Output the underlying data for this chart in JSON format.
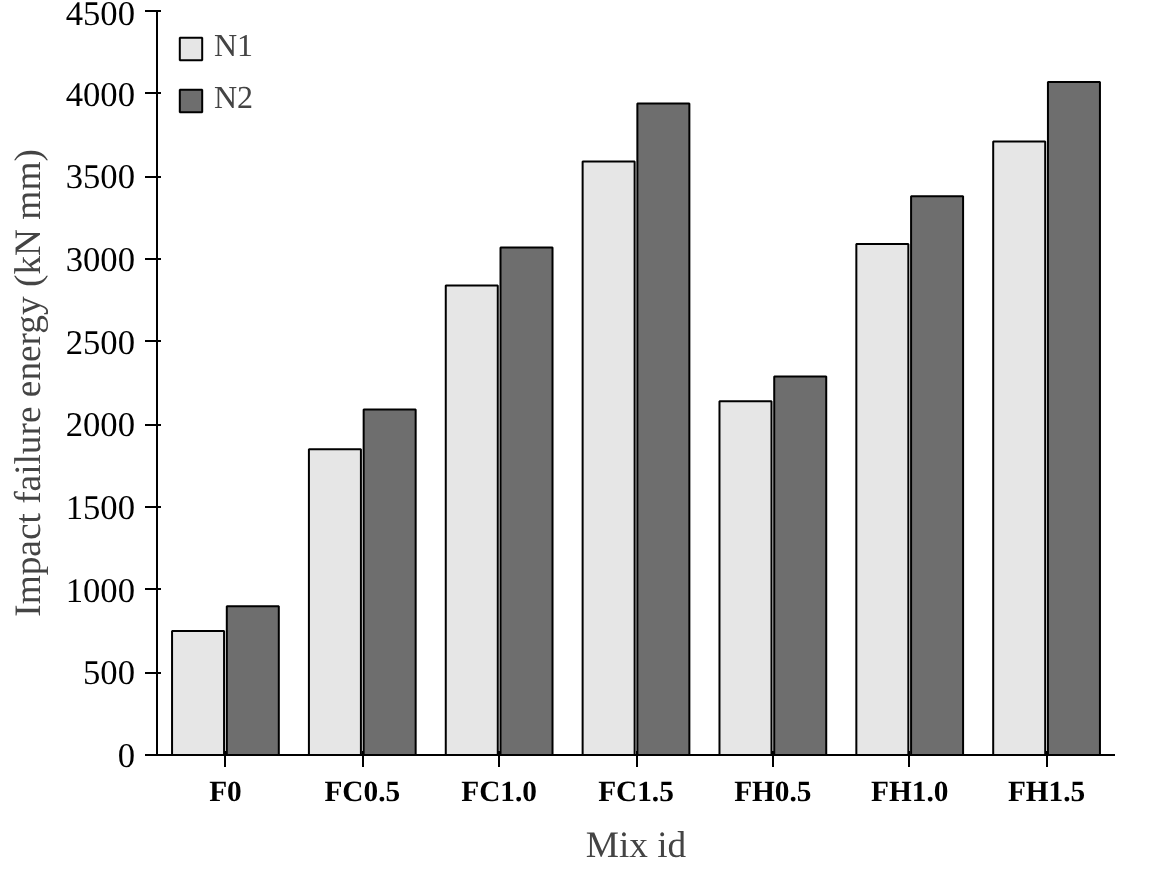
{
  "chart_data": {
    "type": "bar",
    "xlabel": "Mix id",
    "ylabel": "Impact failure energy (kN mm)",
    "categories": [
      "F0",
      "FC0.5",
      "FC1.0",
      "FC1.5",
      "FH0.5",
      "FH1.0",
      "FH1.5"
    ],
    "series": [
      {
        "name": "N1",
        "color": "#e6e6e6",
        "values": [
          750,
          1850,
          2840,
          3590,
          2140,
          3090,
          3710
        ]
      },
      {
        "name": "N2",
        "color": "#6e6e6e",
        "values": [
          900,
          2090,
          3070,
          3940,
          2290,
          3380,
          4070
        ]
      }
    ],
    "ylim": [
      0,
      4500
    ],
    "yticks": [
      0,
      500,
      1000,
      1500,
      2000,
      2500,
      3000,
      3500,
      4000,
      4500
    ],
    "grid": false,
    "legend": "top left"
  }
}
